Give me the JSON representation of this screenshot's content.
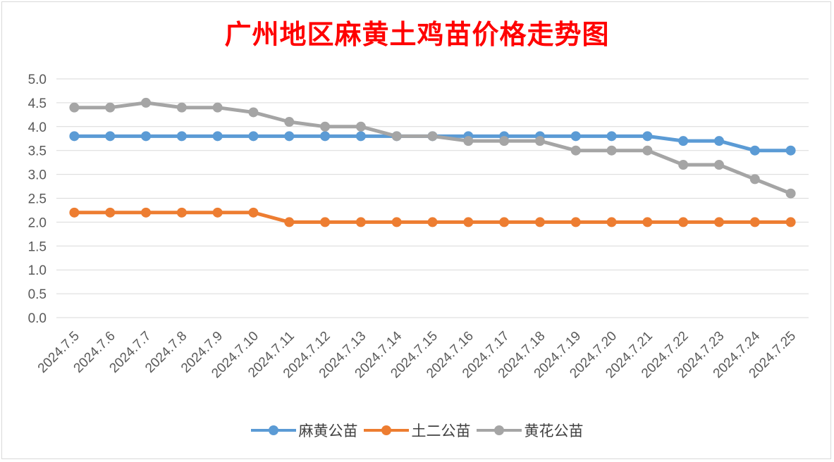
{
  "chart_data": {
    "type": "line",
    "title": "广州地区麻黄土鸡苗价格走势图",
    "categories": [
      "2024.7.5",
      "2024.7.6",
      "2024.7.7",
      "2024.7.8",
      "2024.7.9",
      "2024.7.10",
      "2024.7.11",
      "2024.7.12",
      "2024.7.13",
      "2024.7.14",
      "2024.7.15",
      "2024.7.16",
      "2024.7.17",
      "2024.7.18",
      "2024.7.19",
      "2024.7.20",
      "2024.7.21",
      "2024.7.22",
      "2024.7.23",
      "2024.7.24",
      "2024.7.25"
    ],
    "ylim": [
      0,
      5.0
    ],
    "yticks": [
      "0.0",
      "0.5",
      "1.0",
      "1.5",
      "2.0",
      "2.5",
      "3.0",
      "3.5",
      "4.0",
      "4.5",
      "5.0"
    ],
    "grid": true,
    "legend_position": "bottom",
    "series": [
      {
        "name": "麻黄公苗",
        "color": "#5b9bd5",
        "values": [
          3.8,
          3.8,
          3.8,
          3.8,
          3.8,
          3.8,
          3.8,
          3.8,
          3.8,
          3.8,
          3.8,
          3.8,
          3.8,
          3.8,
          3.8,
          3.8,
          3.8,
          3.7,
          3.7,
          3.5,
          3.5
        ]
      },
      {
        "name": "土二公苗",
        "color": "#ed7d31",
        "values": [
          2.2,
          2.2,
          2.2,
          2.2,
          2.2,
          2.2,
          2.0,
          2.0,
          2.0,
          2.0,
          2.0,
          2.0,
          2.0,
          2.0,
          2.0,
          2.0,
          2.0,
          2.0,
          2.0,
          2.0,
          2.0
        ]
      },
      {
        "name": "黄花公苗",
        "color": "#a5a5a5",
        "values": [
          4.4,
          4.4,
          4.5,
          4.4,
          4.4,
          4.3,
          4.1,
          4.0,
          4.0,
          3.8,
          3.8,
          3.7,
          3.7,
          3.7,
          3.5,
          3.5,
          3.5,
          3.2,
          3.2,
          2.9,
          2.6
        ]
      }
    ]
  }
}
